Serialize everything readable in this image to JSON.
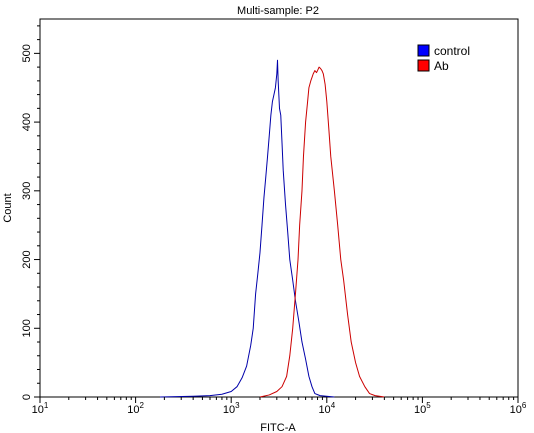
{
  "chart_data": {
    "type": "line",
    "title": "Multi-sample: P2",
    "xlabel": "FITC-A",
    "ylabel": "Count",
    "x_scale": "log",
    "xlim": [
      10,
      1000000
    ],
    "ylim": [
      0,
      550
    ],
    "x_ticks": [
      {
        "value": 10,
        "base": "10",
        "exp": "1"
      },
      {
        "value": 100,
        "base": "10",
        "exp": "2"
      },
      {
        "value": 1000,
        "base": "10",
        "exp": "3"
      },
      {
        "value": 10000,
        "base": "10",
        "exp": "4"
      },
      {
        "value": 100000,
        "base": "10",
        "exp": "5"
      },
      {
        "value": 1000000,
        "base": "10",
        "exp": "6"
      }
    ],
    "y_ticks": [
      {
        "value": 0,
        "label": "0"
      },
      {
        "value": 100,
        "label": "100"
      },
      {
        "value": 200,
        "label": "200"
      },
      {
        "value": 300,
        "label": "300"
      },
      {
        "value": 400,
        "label": "400"
      },
      {
        "value": 500,
        "label": "500"
      }
    ],
    "grid": false,
    "legend_position": "top-right",
    "series": [
      {
        "name": "control",
        "color": "#0000aa",
        "legend_color": "#0000ff",
        "points": [
          [
            180,
            0
          ],
          [
            400,
            1
          ],
          [
            600,
            2
          ],
          [
            800,
            4
          ],
          [
            1000,
            8
          ],
          [
            1150,
            15
          ],
          [
            1300,
            28
          ],
          [
            1450,
            45
          ],
          [
            1600,
            75
          ],
          [
            1700,
            100
          ],
          [
            1800,
            150
          ],
          [
            1900,
            180
          ],
          [
            2000,
            210
          ],
          [
            2100,
            250
          ],
          [
            2200,
            290
          ],
          [
            2300,
            320
          ],
          [
            2400,
            350
          ],
          [
            2500,
            380
          ],
          [
            2600,
            410
          ],
          [
            2700,
            430
          ],
          [
            2800,
            440
          ],
          [
            2900,
            450
          ],
          [
            3000,
            470
          ],
          [
            3050,
            490
          ],
          [
            3100,
            460
          ],
          [
            3200,
            420
          ],
          [
            3300,
            410
          ],
          [
            3400,
            370
          ],
          [
            3500,
            330
          ],
          [
            3700,
            280
          ],
          [
            3900,
            240
          ],
          [
            4100,
            200
          ],
          [
            4400,
            170
          ],
          [
            4700,
            140
          ],
          [
            5100,
            110
          ],
          [
            5500,
            80
          ],
          [
            6000,
            55
          ],
          [
            6500,
            30
          ],
          [
            7000,
            15
          ],
          [
            7500,
            5
          ],
          [
            8500,
            2
          ],
          [
            12000,
            0
          ]
        ]
      },
      {
        "name": "Ab",
        "color": "#cc0000",
        "legend_color": "#ff0000",
        "points": [
          [
            2000,
            0
          ],
          [
            2500,
            3
          ],
          [
            3000,
            8
          ],
          [
            3400,
            15
          ],
          [
            3800,
            30
          ],
          [
            4100,
            60
          ],
          [
            4400,
            100
          ],
          [
            4700,
            150
          ],
          [
            5000,
            200
          ],
          [
            5200,
            250
          ],
          [
            5500,
            300
          ],
          [
            5700,
            350
          ],
          [
            6000,
            400
          ],
          [
            6300,
            430
          ],
          [
            6500,
            450
          ],
          [
            6800,
            460
          ],
          [
            7000,
            465
          ],
          [
            7200,
            470
          ],
          [
            7500,
            475
          ],
          [
            7800,
            472
          ],
          [
            8000,
            475
          ],
          [
            8300,
            480
          ],
          [
            8600,
            478
          ],
          [
            8900,
            475
          ],
          [
            9200,
            470
          ],
          [
            9600,
            455
          ],
          [
            10000,
            430
          ],
          [
            10500,
            390
          ],
          [
            11000,
            350
          ],
          [
            12000,
            300
          ],
          [
            13000,
            250
          ],
          [
            14000,
            200
          ],
          [
            15000,
            170
          ],
          [
            16500,
            120
          ],
          [
            18000,
            80
          ],
          [
            20000,
            50
          ],
          [
            22000,
            30
          ],
          [
            25000,
            15
          ],
          [
            28000,
            5
          ],
          [
            32000,
            2
          ],
          [
            40000,
            0
          ]
        ]
      }
    ]
  }
}
